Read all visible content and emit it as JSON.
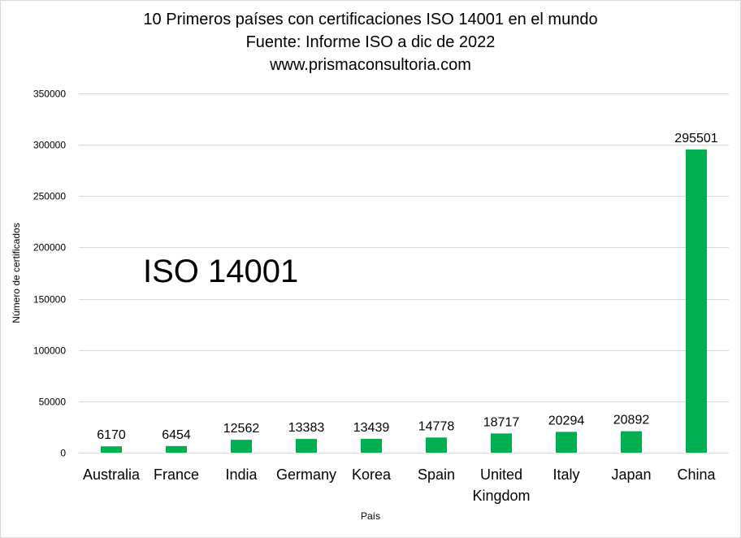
{
  "chart_data": {
    "type": "bar",
    "title_lines": [
      "10 Primeros países con certificaciones ISO 14001 en el mundo",
      "Fuente: Informe ISO a dic de 2022",
      "www.prismaconsultoria.com"
    ],
    "xlabel": "País",
    "ylabel": "Número de certificados",
    "annotation": "ISO 14001",
    "categories": [
      "Australia",
      "France",
      "India",
      "Germany",
      "Korea",
      "Spain",
      "United Kingdom",
      "Italy",
      "Japan",
      "China"
    ],
    "values": [
      6170,
      6454,
      12562,
      13383,
      13439,
      14778,
      18717,
      20294,
      20892,
      295501
    ],
    "ylim": [
      0,
      350000
    ],
    "yticks": [
      0,
      50000,
      100000,
      150000,
      200000,
      250000,
      300000,
      350000
    ],
    "grid": true,
    "bar_color": "#00b050",
    "data_labels": true
  }
}
